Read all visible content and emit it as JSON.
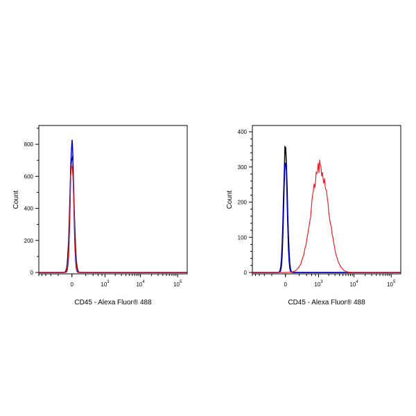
{
  "chart_data": [
    {
      "type": "line",
      "panel": "left",
      "xlabel": "CD45 - Alexa Fluor® 488",
      "ylabel": "Count",
      "xscale": "biexponential",
      "ylim": [
        0,
        900
      ],
      "yticks": [
        0,
        200,
        400,
        600,
        800
      ],
      "xticks": [
        {
          "base": "0",
          "exp": ""
        },
        {
          "base": "10",
          "exp": "3"
        },
        {
          "base": "10",
          "exp": "4"
        },
        {
          "base": "10",
          "exp": "5"
        }
      ],
      "series": [
        {
          "color": "#000000",
          "peak": 750,
          "center": 0,
          "width": 0.055
        },
        {
          "color": "#0000dd",
          "peak": 830,
          "center": 0,
          "width": 0.045
        },
        {
          "color": "#ee1c25",
          "peak": 700,
          "center": 0,
          "width": 0.05
        }
      ]
    },
    {
      "type": "line",
      "panel": "right",
      "xlabel": "CD45 - Alexa Fluor® 488",
      "ylabel": "Count",
      "xscale": "biexponential",
      "ylim": [
        0,
        410
      ],
      "yticks": [
        0,
        100,
        200,
        300,
        400
      ],
      "xticks": [
        {
          "base": "0",
          "exp": ""
        },
        {
          "base": "10",
          "exp": "3"
        },
        {
          "base": "10",
          "exp": "4"
        },
        {
          "base": "10",
          "exp": "5"
        }
      ],
      "series": [
        {
          "color": "#000000",
          "peak": 370,
          "center": 0,
          "width": 0.05
        },
        {
          "color": "#0000dd",
          "peak": 330,
          "center": 0,
          "width": 0.045
        },
        {
          "color": "#ee1c25",
          "peak": 300,
          "center": 1100,
          "width": 0.23
        }
      ]
    }
  ]
}
